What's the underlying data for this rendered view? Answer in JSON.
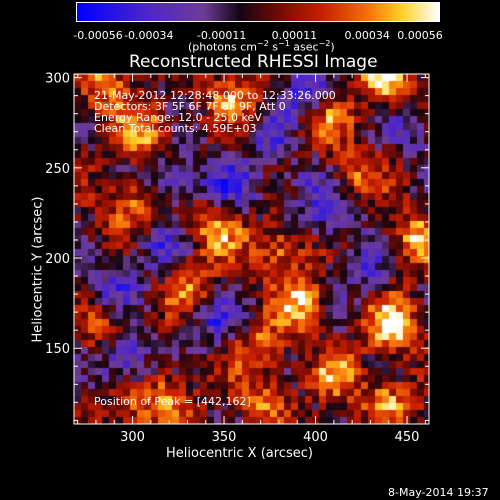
{
  "chart_data": {
    "type": "heatmap",
    "title": "Reconstructed RHESSI Image",
    "xlabel": "Heliocentric X (arcsec)",
    "ylabel": "Heliocentric Y (arcsec)",
    "xlim": [
      268,
      462
    ],
    "ylim": [
      108,
      302
    ],
    "x_ticks": [
      300,
      350,
      400,
      450
    ],
    "y_ticks": [
      150,
      200,
      250,
      300
    ],
    "colorbar": {
      "colormap": "blue-purple-black-red-orange-yellow-white",
      "range": [
        -0.00056,
        0.00056
      ],
      "ticks": [
        "-0.00056",
        "-0.00034",
        "-0.00011",
        "0.00011",
        "0.00034",
        "0.00056"
      ],
      "units": "(photons cm-2 s-1 asec-2)"
    },
    "annotations": [
      "21-May-2012 12:28:48.000 to 12:33:26.000",
      "Detectors: 3F 5F 6F 7F 8F 9F, Att 0",
      "Energy Range: 12.0 - 25.0 keV",
      "Clean     Total counts: 4.59E+03",
      "Position of Peak = [442,162]"
    ],
    "peak": [
      442,
      162
    ],
    "blobs": [
      {
        "x": 442,
        "y": 162,
        "v": 1.0
      },
      {
        "x": 438,
        "y": 300,
        "v": 0.9
      },
      {
        "x": 455,
        "y": 210,
        "v": 0.75
      },
      {
        "x": 305,
        "y": 270,
        "v": 0.7
      },
      {
        "x": 345,
        "y": 215,
        "v": 0.7
      },
      {
        "x": 380,
        "y": 205,
        "v": 0.65
      },
      {
        "x": 392,
        "y": 175,
        "v": 0.75
      },
      {
        "x": 330,
        "y": 185,
        "v": 0.55
      },
      {
        "x": 298,
        "y": 230,
        "v": 0.6
      },
      {
        "x": 355,
        "y": 290,
        "v": 0.6
      },
      {
        "x": 405,
        "y": 275,
        "v": 0.55
      },
      {
        "x": 420,
        "y": 245,
        "v": 0.6
      },
      {
        "x": 440,
        "y": 120,
        "v": 0.65
      },
      {
        "x": 320,
        "y": 125,
        "v": 0.55
      },
      {
        "x": 285,
        "y": 160,
        "v": 0.5
      },
      {
        "x": 370,
        "y": 150,
        "v": 0.55
      },
      {
        "x": 300,
        "y": 112,
        "v": 0.45
      },
      {
        "x": 285,
        "y": 295,
        "v": 0.6
      },
      {
        "x": 370,
        "y": 120,
        "v": 0.5
      },
      {
        "x": 410,
        "y": 135,
        "v": 0.55
      },
      {
        "x": 295,
        "y": 145,
        "v": -0.8
      },
      {
        "x": 290,
        "y": 185,
        "v": -0.55
      },
      {
        "x": 325,
        "y": 245,
        "v": -0.6
      },
      {
        "x": 355,
        "y": 240,
        "v": -0.55
      },
      {
        "x": 395,
        "y": 292,
        "v": -0.7
      },
      {
        "x": 345,
        "y": 165,
        "v": -0.55
      },
      {
        "x": 410,
        "y": 225,
        "v": -0.6
      },
      {
        "x": 425,
        "y": 195,
        "v": -0.5
      },
      {
        "x": 375,
        "y": 265,
        "v": -0.45
      },
      {
        "x": 315,
        "y": 205,
        "v": -0.5
      },
      {
        "x": 455,
        "y": 270,
        "v": -0.45
      },
      {
        "x": 395,
        "y": 240,
        "v": -0.45
      }
    ]
  },
  "footer": {
    "date": "8-May-2014 19:37"
  }
}
